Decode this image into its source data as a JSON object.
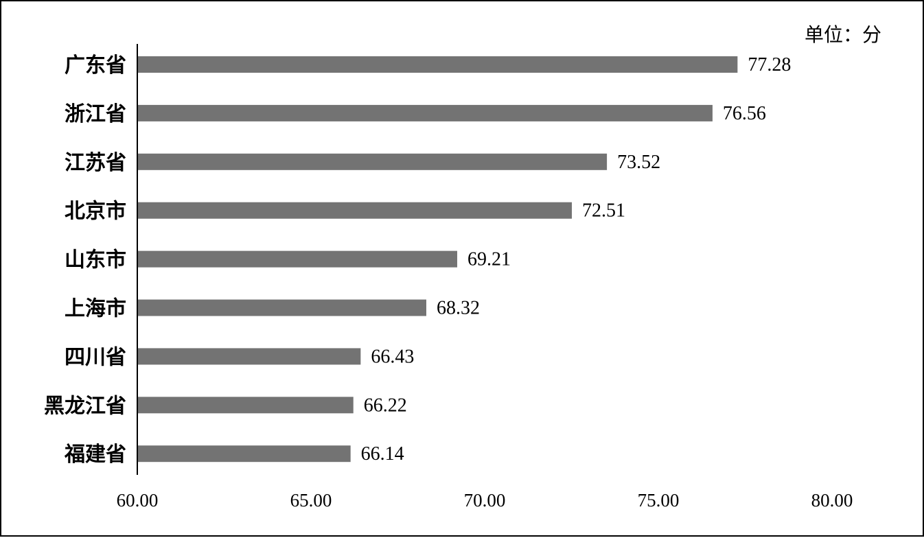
{
  "chart_data": {
    "type": "bar",
    "orientation": "horizontal",
    "categories": [
      "广东省",
      "浙江省",
      "江苏省",
      "北京市",
      "山东市",
      "上海市",
      "四川省",
      "黑龙江省",
      "福建省"
    ],
    "values": [
      77.28,
      76.56,
      73.52,
      72.51,
      69.21,
      68.32,
      66.43,
      66.22,
      66.14
    ],
    "value_labels": [
      "77.28",
      "76.56",
      "73.52",
      "72.51",
      "69.21",
      "68.32",
      "66.43",
      "66.22",
      "66.14"
    ],
    "x_ticks": [
      "60.00",
      "65.00",
      "70.00",
      "75.00",
      "80.00"
    ],
    "xlim": [
      60,
      80
    ],
    "unit_label": "单位：分",
    "grid": false,
    "bar_color": "#737373"
  }
}
